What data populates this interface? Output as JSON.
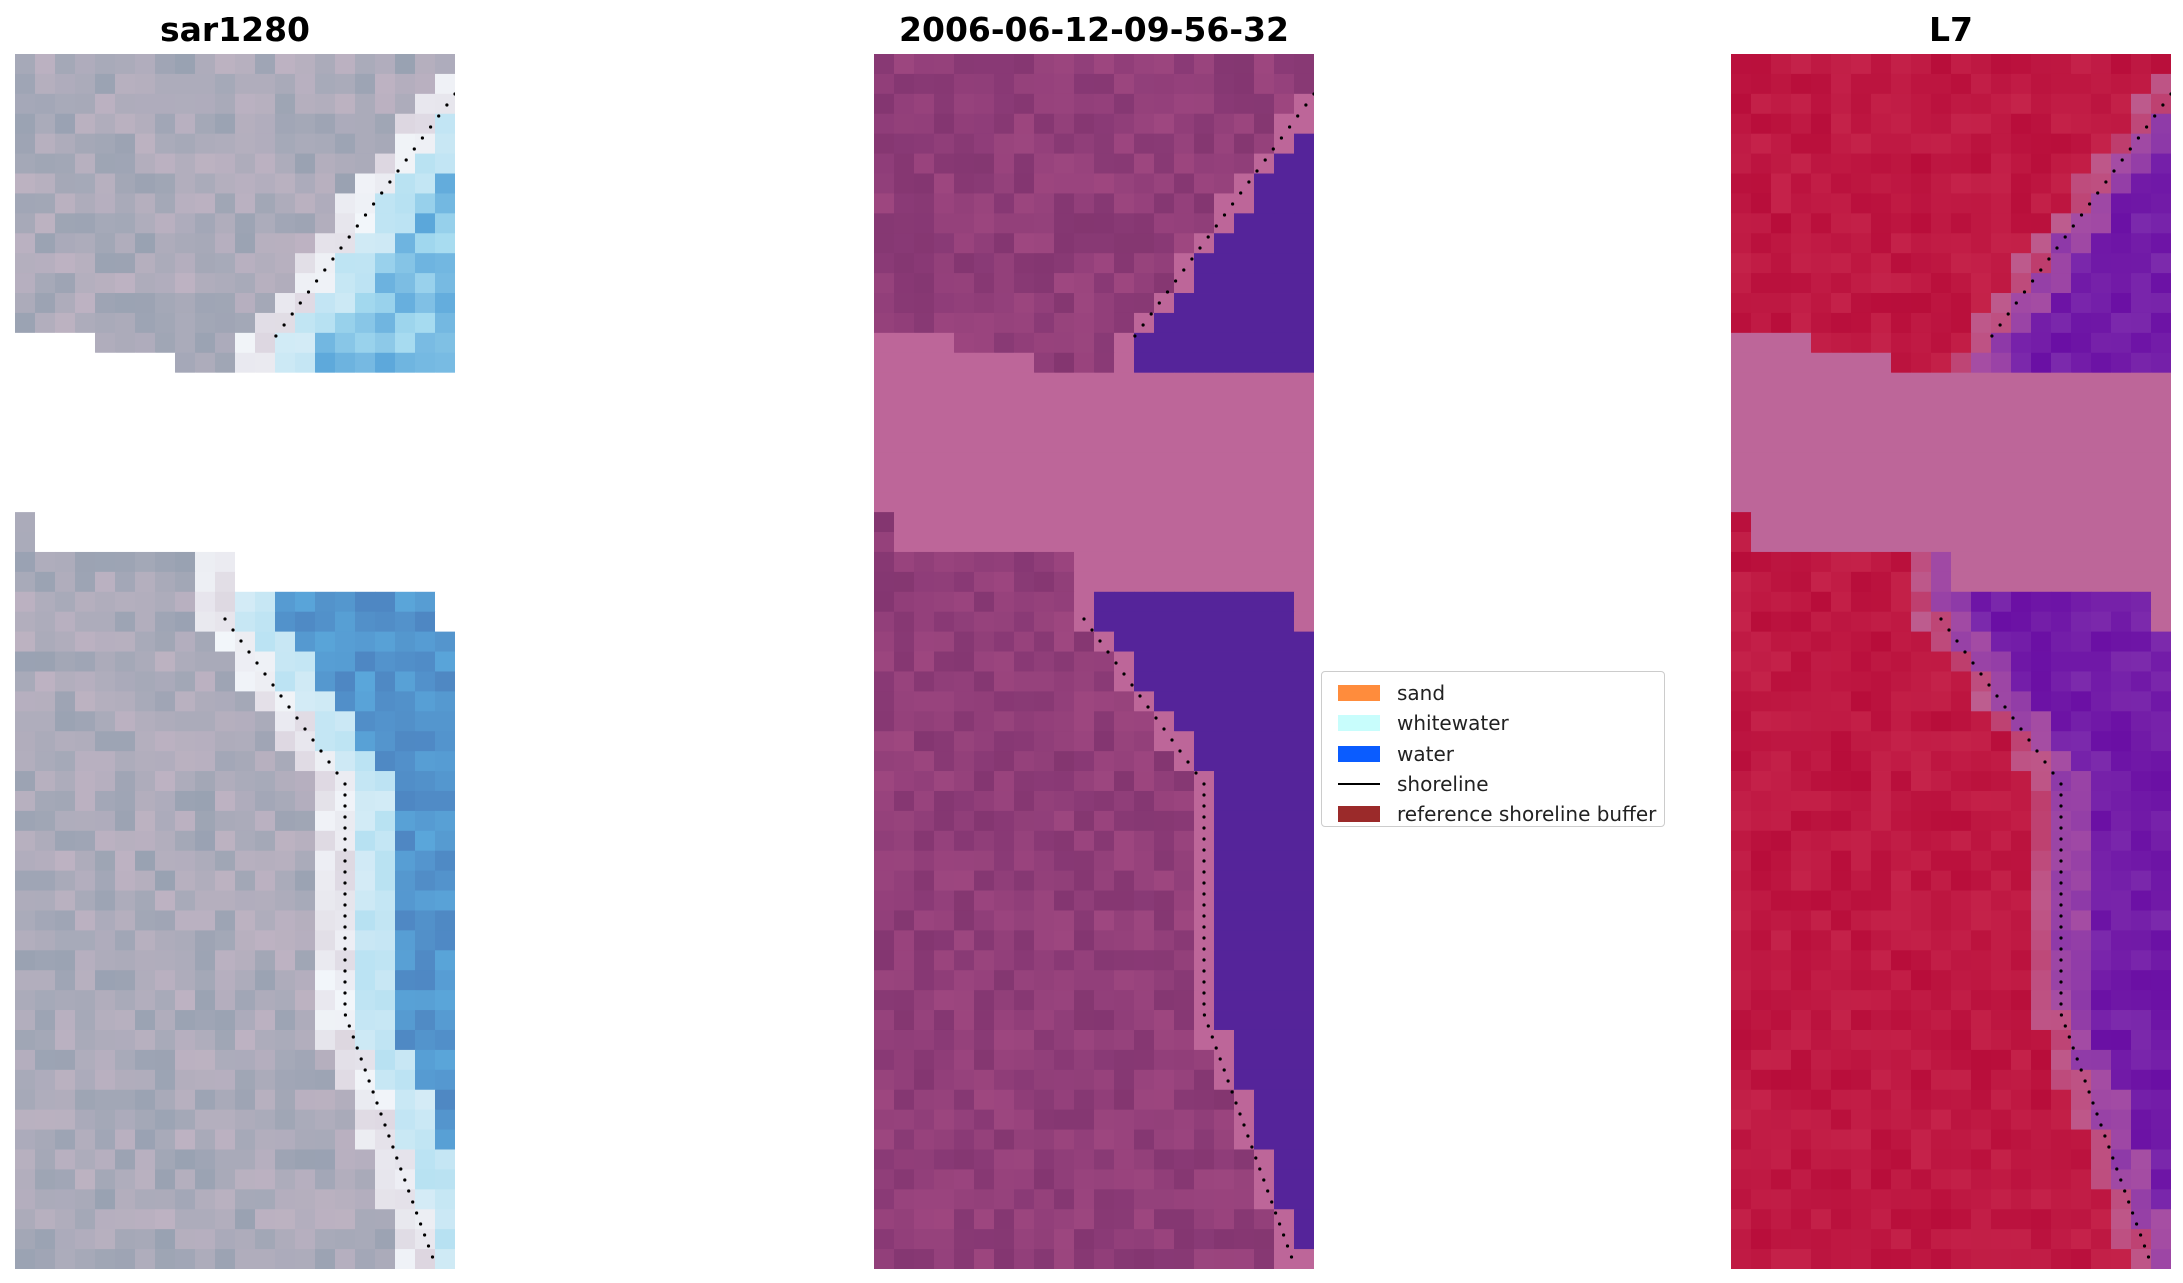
{
  "panels": [
    {
      "title": "sar1280",
      "style": "rgb",
      "colors": {
        "land": "#a6a9b8",
        "land_dark": "#7f93a6",
        "land_light": "#c7b6c6",
        "foam": "#f2f6fa",
        "water_light": "#a8dcf0",
        "water": "#5aa6da",
        "water_dark": "#4e86c2",
        "no_data": "#ffffff"
      }
    },
    {
      "title": "2006-06-12-09-56-32",
      "style": "classified",
      "colors": {
        "land": "#8a3a76",
        "land_dark": "#7a3068",
        "land_light": "#a34a82",
        "buffer": "#bd6699",
        "water": "#55249a",
        "no_data": "#ffffff"
      }
    },
    {
      "title": "L7",
      "style": "mndwi",
      "colors": {
        "land": "#c0123e",
        "land_dark": "#b80d3a",
        "land_light": "#c8284e",
        "transition": "#a64ea3",
        "buffer": "#bd6699",
        "water": "#6a0fa4",
        "water_light": "#7c2aac",
        "no_data": "#ffffff"
      }
    }
  ],
  "legend": {
    "items": [
      {
        "label": "sand",
        "type": "patch",
        "color": "#ff8c3c"
      },
      {
        "label": "whitewater",
        "type": "patch",
        "color": "#c8fdfc"
      },
      {
        "label": "water",
        "type": "patch",
        "color": "#0a5cff"
      },
      {
        "label": "shoreline",
        "type": "line",
        "color": "#000000"
      },
      {
        "label": "reference shoreline buffer",
        "type": "patch",
        "color": "#9b2a2a"
      }
    ]
  }
}
